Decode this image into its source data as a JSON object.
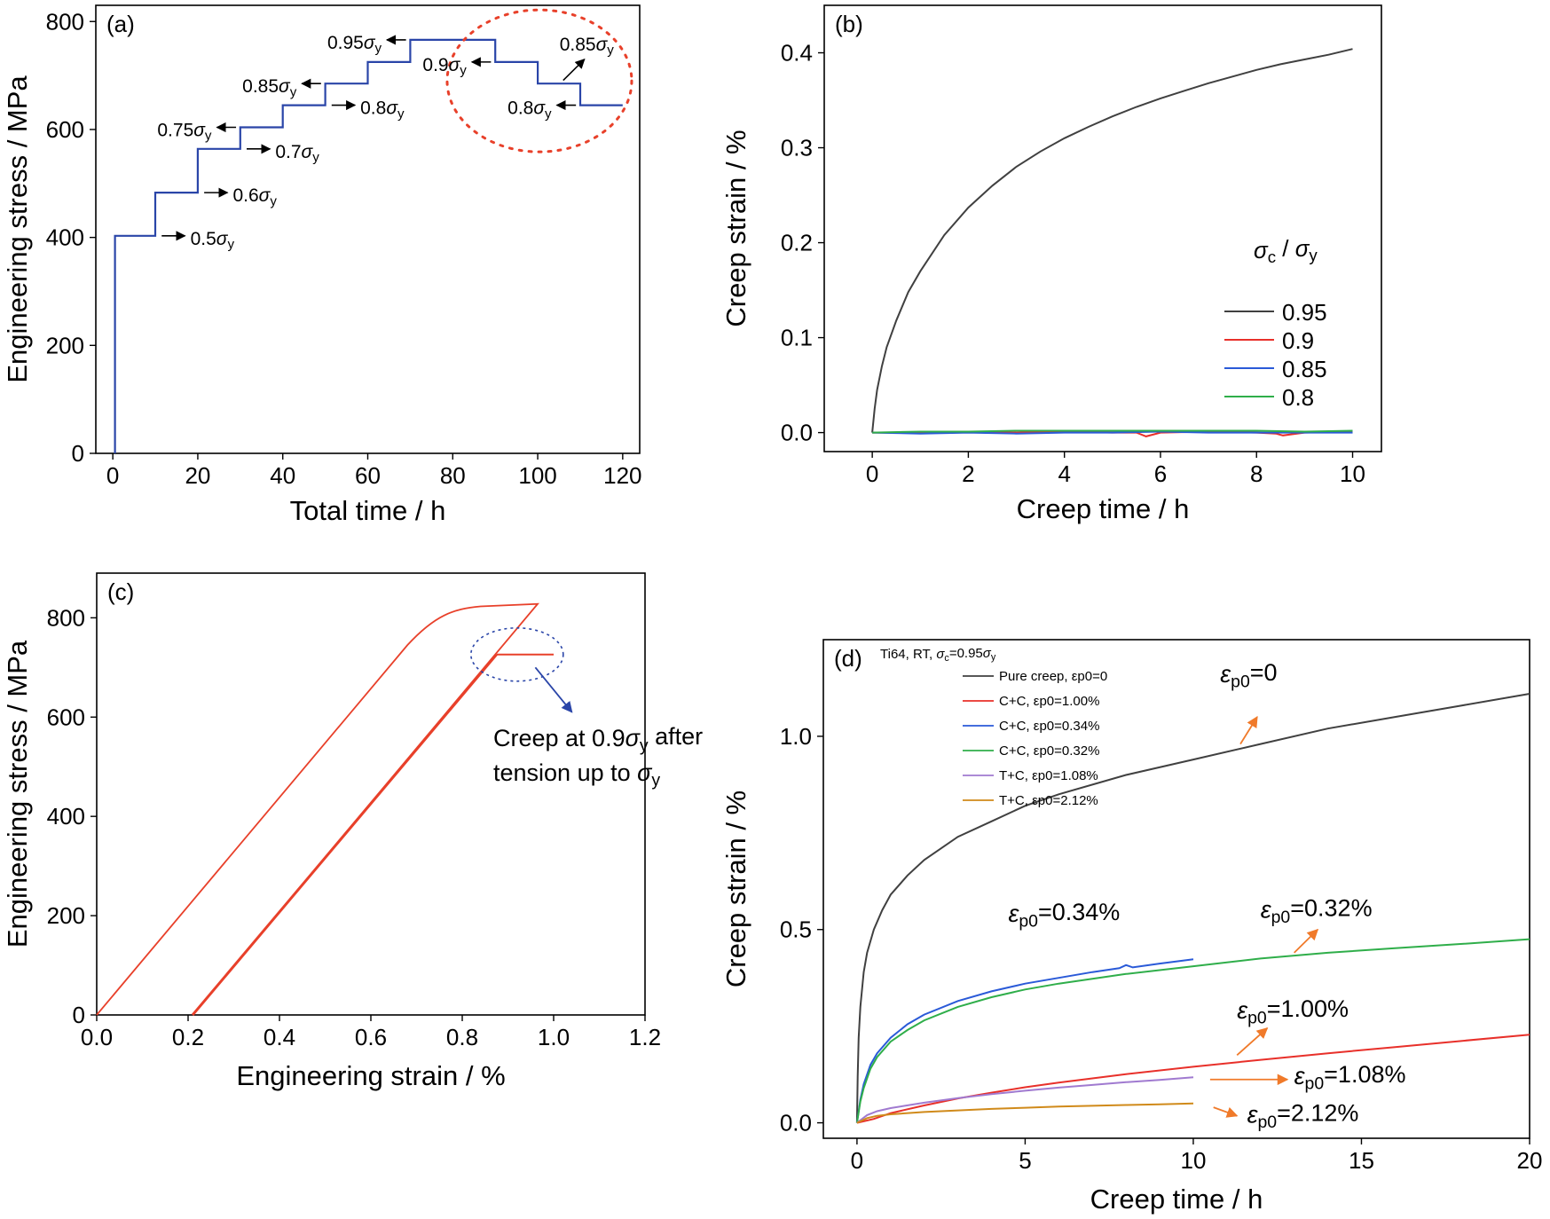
{
  "chart_data": [
    {
      "id": "a",
      "type": "line",
      "panel_label": "(a)",
      "xlabel": "Total time / h",
      "ylabel": "Engineering stress / MPa",
      "xlim": [
        -4,
        124
      ],
      "ylim": [
        0,
        830
      ],
      "xticks": [
        0,
        20,
        40,
        60,
        80,
        100,
        120
      ],
      "yticks": [
        0,
        200,
        400,
        600,
        800
      ],
      "colors": {
        "line": "#2a45a8",
        "circle": "#e8402a"
      },
      "series": [
        {
          "x": [
            0.5,
            0.5,
            10,
            10,
            20,
            20,
            30,
            30,
            40,
            40,
            50,
            50,
            60,
            60,
            70,
            70,
            90,
            90,
            100,
            100,
            110,
            110,
            120
          ],
          "y": [
            0,
            403,
            403,
            483,
            483,
            564,
            564,
            604,
            604,
            645,
            645,
            685,
            685,
            725,
            725,
            766,
            766,
            725,
            725,
            685,
            685,
            645,
            645
          ]
        }
      ],
      "annotations": [
        {
          "text": "0.5",
          "sym": "σ",
          "sub": "y"
        },
        {
          "text": "0.6",
          "sym": "σ",
          "sub": "y"
        },
        {
          "text": "0.7",
          "sym": "σ",
          "sub": "y"
        },
        {
          "text": "0.75",
          "sym": "σ",
          "sub": "y"
        },
        {
          "text": "0.8",
          "sym": "σ",
          "sub": "y"
        },
        {
          "text": "0.85",
          "sym": "σ",
          "sub": "y"
        },
        {
          "text": "0.95",
          "sym": "σ",
          "sub": "y"
        },
        {
          "text": "0.9",
          "sym": "σ",
          "sub": "y"
        },
        {
          "text": "0.85",
          "sym": "σ",
          "sub": "y"
        },
        {
          "text": "0.8",
          "sym": "σ",
          "sub": "y"
        }
      ]
    },
    {
      "id": "b",
      "type": "line",
      "panel_label": "(b)",
      "xlabel": "Creep time / h",
      "ylabel": "Creep strain / %",
      "xlim": [
        -1,
        10.6
      ],
      "ylim": [
        -0.02,
        0.45
      ],
      "xticks": [
        0,
        2,
        4,
        6,
        8,
        10
      ],
      "yticks": [
        0.0,
        0.1,
        0.2,
        0.3,
        0.4
      ],
      "ytick_labels": [
        "0.0",
        "0.1",
        "0.2",
        "0.3",
        "0.4"
      ],
      "legend": {
        "title": "σc / σy",
        "position": "center-right"
      },
      "series": [
        {
          "name": "0.95",
          "color": "#404040",
          "x": [
            0,
            0.05,
            0.1,
            0.2,
            0.3,
            0.5,
            0.75,
            1,
            1.5,
            2,
            2.5,
            3,
            3.5,
            4,
            4.5,
            5,
            5.5,
            6,
            6.5,
            7,
            7.5,
            8,
            8.5,
            9,
            9.5,
            10
          ],
          "y": [
            0,
            0.025,
            0.045,
            0.07,
            0.09,
            0.118,
            0.148,
            0.17,
            0.208,
            0.237,
            0.26,
            0.28,
            0.296,
            0.31,
            0.322,
            0.333,
            0.343,
            0.352,
            0.36,
            0.368,
            0.375,
            0.382,
            0.388,
            0.393,
            0.398,
            0.404
          ]
        },
        {
          "name": "0.9",
          "color": "#e8302a",
          "x": [
            0,
            1,
            2,
            3,
            4,
            5,
            5.5,
            5.7,
            6,
            7,
            8,
            8.4,
            8.55,
            9,
            10
          ],
          "y": [
            0,
            0.0,
            0.001,
            0.0,
            0.001,
            0.0,
            0.0,
            -0.004,
            0.0,
            0.001,
            0.0,
            -0.001,
            -0.003,
            0.0,
            0.001
          ]
        },
        {
          "name": "0.85",
          "color": "#2a5ad8",
          "x": [
            0,
            1,
            2,
            3,
            4,
            5,
            6,
            7,
            8,
            9,
            10
          ],
          "y": [
            0,
            -0.001,
            0.0,
            -0.001,
            0.0,
            0.0,
            0.001,
            0.0,
            0.0,
            0.0,
            0.0
          ]
        },
        {
          "name": "0.8",
          "color": "#2fae4a",
          "x": [
            0,
            1,
            2,
            3,
            4,
            5,
            6,
            7,
            8,
            9,
            10
          ],
          "y": [
            0,
            0.001,
            0.001,
            0.002,
            0.002,
            0.002,
            0.002,
            0.002,
            0.002,
            0.001,
            0.002
          ]
        }
      ]
    },
    {
      "id": "c",
      "type": "line",
      "panel_label": "(c)",
      "xlabel": "Engineering strain / %",
      "ylabel": "Engineering stress / MPa",
      "xlim": [
        0,
        1.2
      ],
      "ylim": [
        0,
        890
      ],
      "xticks": [
        0.0,
        0.2,
        0.4,
        0.6,
        0.8,
        1.0,
        1.2
      ],
      "xtick_labels": [
        "0.0",
        "0.2",
        "0.4",
        "0.6",
        "0.8",
        "1.0",
        "1.2"
      ],
      "yticks": [
        0,
        200,
        400,
        600,
        800
      ],
      "colors": {
        "line": "#e8402a",
        "ellipse": "#2a45a8",
        "arrow": "#2a45a8"
      },
      "series": [
        {
          "x": [
            0,
            0.68,
            0.72,
            0.76,
            0.8,
            0.86,
            0.92,
            0.965,
            0.21
          ],
          "y": [
            0,
            745,
            780,
            805,
            818,
            824,
            826,
            828,
            0
          ]
        },
        {
          "x": [
            0.21,
            0.875
          ],
          "y": [
            0,
            726
          ],
          "width": "thick"
        },
        {
          "x": [
            0.875,
            1.0
          ],
          "y": [
            726,
            726
          ]
        }
      ],
      "annotation": {
        "line1_pre": "Creep at 0.9",
        "line1_sym": "σ",
        "line1_sub": "y",
        "line1_post": " after",
        "line2_pre": "tension up to ",
        "line2_sym": "σ",
        "line2_sub": "y"
      }
    },
    {
      "id": "d",
      "type": "line",
      "panel_label": "(d)",
      "xlabel": "Creep time / h",
      "ylabel": "Creep strain / %",
      "xlim": [
        -1,
        20
      ],
      "ylim": [
        -0.04,
        1.25
      ],
      "xticks": [
        0,
        5,
        10,
        15,
        20
      ],
      "yticks": [
        0.0,
        0.5,
        1.0
      ],
      "ytick_labels": [
        "0.0",
        "0.5",
        "1.0"
      ],
      "legend": {
        "title": "Ti64, RT, σc=0.95σy",
        "position": "top-left"
      },
      "series": [
        {
          "name": "Pure creep, εp0=0",
          "color": "#404040",
          "x": [
            0,
            0.02,
            0.05,
            0.1,
            0.2,
            0.3,
            0.5,
            0.75,
            1,
            1.5,
            2,
            3,
            4,
            5,
            6,
            8,
            10,
            12,
            14,
            16,
            18,
            20
          ],
          "y": [
            0,
            0.12,
            0.22,
            0.3,
            0.39,
            0.44,
            0.5,
            0.55,
            0.59,
            0.64,
            0.68,
            0.74,
            0.78,
            0.82,
            0.85,
            0.9,
            0.94,
            0.98,
            1.02,
            1.05,
            1.08,
            1.11
          ]
        },
        {
          "name": "C+C, εp0=1.00%",
          "color": "#e8302a",
          "x": [
            0,
            0.5,
            1,
            2,
            3,
            4,
            5,
            6,
            8,
            10,
            12,
            14,
            16,
            18,
            20
          ],
          "y": [
            0,
            0.01,
            0.025,
            0.045,
            0.063,
            0.078,
            0.092,
            0.104,
            0.126,
            0.145,
            0.163,
            0.18,
            0.196,
            0.212,
            0.228
          ]
        },
        {
          "name": "C+C, εp0=0.34%",
          "color": "#2a5ad8",
          "x": [
            0,
            0.1,
            0.2,
            0.4,
            0.6,
            1,
            1.5,
            2,
            3,
            4,
            5,
            6,
            7,
            7.8,
            8,
            8.2,
            9,
            10
          ],
          "y": [
            0,
            0.06,
            0.1,
            0.15,
            0.18,
            0.22,
            0.255,
            0.28,
            0.315,
            0.34,
            0.36,
            0.375,
            0.39,
            0.4,
            0.408,
            0.402,
            0.412,
            0.423
          ]
        },
        {
          "name": "C+C, εp0=0.32%",
          "color": "#2fae4a",
          "x": [
            0,
            0.1,
            0.2,
            0.4,
            0.6,
            1,
            1.5,
            2,
            3,
            4,
            5,
            6,
            8,
            10,
            12,
            14,
            16,
            18,
            20
          ],
          "y": [
            0,
            0.055,
            0.09,
            0.14,
            0.17,
            0.21,
            0.24,
            0.265,
            0.3,
            0.325,
            0.345,
            0.36,
            0.385,
            0.405,
            0.425,
            0.44,
            0.452,
            0.463,
            0.475
          ]
        },
        {
          "name": "T+C, εp0=1.08%",
          "color": "#a07ad0",
          "x": [
            0,
            0.3,
            0.6,
            1,
            2,
            3,
            4,
            5,
            6,
            7,
            8,
            9,
            10
          ],
          "y": [
            0,
            0.02,
            0.03,
            0.038,
            0.052,
            0.064,
            0.074,
            0.083,
            0.091,
            0.098,
            0.105,
            0.111,
            0.118
          ]
        },
        {
          "name": "T+C, εp0=2.12%",
          "color": "#d08a1a",
          "x": [
            0,
            0.3,
            0.6,
            1,
            2,
            3,
            4,
            5,
            6,
            7,
            8,
            9,
            10
          ],
          "y": [
            0,
            0.012,
            0.018,
            0.022,
            0.028,
            0.032,
            0.036,
            0.039,
            0.042,
            0.044,
            0.046,
            0.048,
            0.05
          ]
        }
      ],
      "annotations": [
        {
          "sym": "ε",
          "sub": "p0",
          "text": "=0"
        },
        {
          "sym": "ε",
          "sub": "p0",
          "text": "=0.34%"
        },
        {
          "sym": "ε",
          "sub": "p0",
          "text": "=0.32%"
        },
        {
          "sym": "ε",
          "sub": "p0",
          "text": "=1.00%"
        },
        {
          "sym": "ε",
          "sub": "p0",
          "text": "=1.08%"
        },
        {
          "sym": "ε",
          "sub": "p0",
          "text": "=2.12%"
        }
      ],
      "arrow_color": "#f07a2a"
    }
  ]
}
